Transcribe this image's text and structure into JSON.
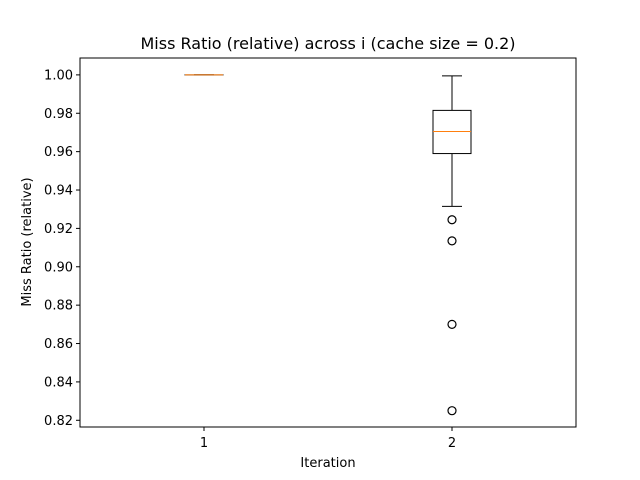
{
  "chart_data": {
    "type": "boxplot",
    "title": "Miss Ratio (relative) across i (cache size = 0.2)",
    "xlabel": "Iteration",
    "ylabel": "Miss Ratio (relative)",
    "categories": [
      "1",
      "2"
    ],
    "ylim": [
      0.8165,
      1.0088
    ],
    "yticks": [
      0.82,
      0.84,
      0.86,
      0.88,
      0.9,
      0.92,
      0.94,
      0.96,
      0.98,
      1.0
    ],
    "ytick_labels": [
      "0.82",
      "0.84",
      "0.86",
      "0.88",
      "0.90",
      "0.92",
      "0.94",
      "0.96",
      "0.98",
      "1.00"
    ],
    "grid": false,
    "boxes": [
      {
        "category": "1",
        "whisker_low": 1.0,
        "q1": 1.0,
        "median": 1.0,
        "q3": 1.0,
        "whisker_high": 1.0,
        "outliers": []
      },
      {
        "category": "2",
        "whisker_low": 0.9315,
        "q1": 0.959,
        "median": 0.9705,
        "q3": 0.9815,
        "whisker_high": 0.9995,
        "outliers": [
          0.9245,
          0.9135,
          0.87,
          0.825
        ]
      }
    ],
    "colors": {
      "box": "#000000",
      "median": "#ff7f0e",
      "outlier": "#000000"
    }
  }
}
